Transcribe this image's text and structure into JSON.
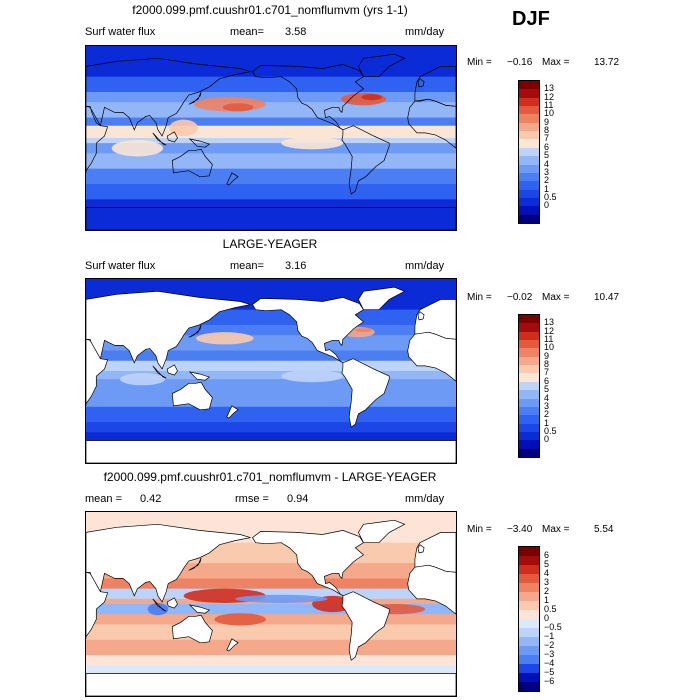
{
  "season": "DJF",
  "colors": {
    "positive13": [
      "#00007f",
      "#0010b8",
      "#0a2bd6",
      "#1c46e6",
      "#2f62f0",
      "#4a7ef2",
      "#6d9af5",
      "#93b6f7",
      "#bcd3fa",
      "#fbe6d6",
      "#f9caad",
      "#f5a98a",
      "#ef8263",
      "#e35a3d",
      "#cf2e1d",
      "#a40b0b",
      "#7a0000"
    ],
    "diverging": [
      "#00007f",
      "#0010b8",
      "#1c46e6",
      "#4a7ef2",
      "#6d9af5",
      "#93b6f7",
      "#bcd3fa",
      "#dde9fb",
      "#fde4d6",
      "#f9caad",
      "#f5a98a",
      "#ef8263",
      "#e35a3d",
      "#cf2e1d",
      "#a40b0b",
      "#7a0000"
    ]
  },
  "panels": [
    {
      "title": "f2000.099.pmf.cuushr01.c701_nomflumvm (yrs 1-1)",
      "left_label": "Surf water flux",
      "stat1_label": "mean=",
      "stat1_value": "3.58",
      "stat2_label": "",
      "stat2_value": "",
      "units": "mm/day",
      "min_label": "Min =",
      "min_value": "−0.16",
      "max_label": "Max =",
      "max_value": "13.72",
      "colorbar_levels": [
        "13",
        "12",
        "11",
        "10",
        "9",
        "8",
        "7",
        "6",
        "5",
        "4",
        "3",
        "2",
        "1",
        "0.5",
        "0"
      ],
      "land_masked": false,
      "kind": "model"
    },
    {
      "title": "LARGE-YEAGER",
      "left_label": "Surf water flux",
      "stat1_label": "mean=",
      "stat1_value": "3.16",
      "stat2_label": "",
      "stat2_value": "",
      "units": "mm/day",
      "min_label": "Min =",
      "min_value": "−0.02",
      "max_label": "Max =",
      "max_value": "10.47",
      "colorbar_levels": [
        "13",
        "12",
        "11",
        "10",
        "9",
        "8",
        "7",
        "6",
        "5",
        "4",
        "3",
        "2",
        "1",
        "0.5",
        "0"
      ],
      "land_masked": true,
      "kind": "obs"
    },
    {
      "title": "f2000.099.pmf.cuushr01.c701_nomflumvm - LARGE-YEAGER",
      "left_label": "mean =",
      "stat1_label": "",
      "stat1_value": "0.42",
      "stat2_label": "rmse =",
      "stat2_value": "0.94",
      "units": "mm/day",
      "min_label": "Min =",
      "min_value": "−3.40",
      "max_label": "Max =",
      "max_value": "5.54",
      "colorbar_levels": [
        "6",
        "5",
        "4",
        "3",
        "2",
        "1",
        "0.5",
        "0",
        "−0.5",
        "−1",
        "−2",
        "−3",
        "−4",
        "−5",
        "−6"
      ],
      "land_masked": true,
      "kind": "diff"
    }
  ],
  "chart_data": [
    {
      "type": "heatmap",
      "title": "f2000.099.pmf.cuushr01.c701_nomflumvm (yrs 1-1)",
      "variable": "Surf water flux",
      "units": "mm/day",
      "mean": 3.58,
      "min": -0.16,
      "max": 13.72,
      "contour_levels": [
        0,
        0.5,
        1,
        2,
        3,
        4,
        5,
        6,
        7,
        8,
        9,
        10,
        11,
        12,
        13
      ]
    },
    {
      "type": "heatmap",
      "title": "LARGE-YEAGER",
      "variable": "Surf water flux",
      "units": "mm/day",
      "mean": 3.16,
      "min": -0.02,
      "max": 10.47,
      "contour_levels": [
        0,
        0.5,
        1,
        2,
        3,
        4,
        5,
        6,
        7,
        8,
        9,
        10,
        11,
        12,
        13
      ]
    },
    {
      "type": "heatmap",
      "title": "f2000.099.pmf.cuushr01.c701_nomflumvm - LARGE-YEAGER",
      "units": "mm/day",
      "mean": 0.42,
      "rmse": 0.94,
      "min": -3.4,
      "max": 5.54,
      "contour_levels": [
        -6,
        -5,
        -4,
        -3,
        -2,
        -1,
        -0.5,
        0,
        0.5,
        1,
        2,
        3,
        4,
        5,
        6
      ]
    }
  ]
}
